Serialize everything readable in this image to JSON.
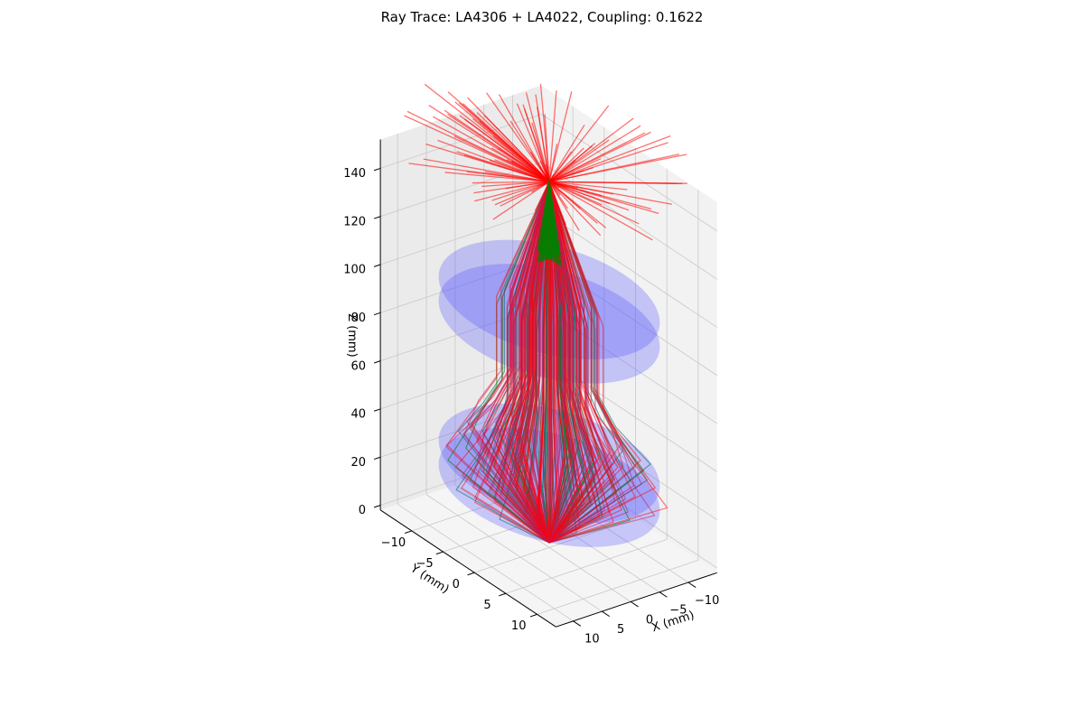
{
  "chart_data": {
    "type": "3d-line",
    "title": "Ray Trace: LA4306 + LA4022, Coupling: 0.1622",
    "xlabel": "X (mm)",
    "ylabel": "Y (mm)",
    "zlabel": "Z (mm)",
    "xlim": [
      -15,
      13
    ],
    "ylim": [
      -15,
      13
    ],
    "zlim": [
      -2,
      152
    ],
    "xticks": [
      -10,
      -5,
      0,
      5,
      10
    ],
    "yticks": [
      -10,
      -5,
      0,
      5,
      10
    ],
    "zticks": [
      0,
      20,
      40,
      60,
      80,
      100,
      120,
      140
    ],
    "xtick_labels": [
      "−10",
      "−5",
      "0",
      "5",
      "10"
    ],
    "ytick_labels": [
      "−10",
      "−5",
      "0",
      "5",
      "10"
    ],
    "ztick_labels": [
      "0",
      "20",
      "40",
      "60",
      "80",
      "100",
      "120",
      "140"
    ],
    "view": {
      "elev": 20,
      "azim": 45
    },
    "grid": true,
    "lenses": [
      {
        "center_z": 28,
        "z_front": 23,
        "z_back": 33,
        "radius": 13,
        "color": "#4d4dff"
      },
      {
        "center_z": 96,
        "z_front": 91,
        "z_back": 101,
        "radius": 13,
        "color": "#4d4dff"
      }
    ],
    "source": {
      "z": 0
    },
    "focus": {
      "z": 150
    },
    "series": [
      {
        "role": "coupled-rays",
        "color": "#008000"
      },
      {
        "role": "lost-rays",
        "color": "#ff0000"
      }
    ],
    "colors": {
      "pane": "#f2f2f2",
      "grid": "#c8c8c8",
      "axis": "#000000"
    }
  }
}
